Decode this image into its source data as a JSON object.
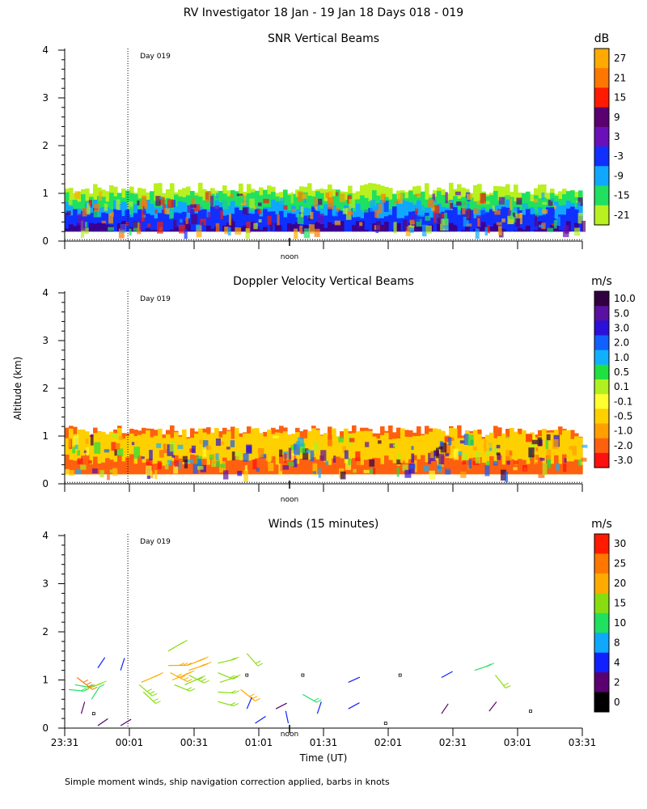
{
  "page_title": "RV Investigator  18 Jan - 19 Jan 18 Days 018 - 019",
  "y_axis_label": "Altitude (km)",
  "x_axis_label": "Time (UT)",
  "footer_note": "Simple moment winds, ship navigation correction applied, barbs in knots",
  "day_marker_label": "Day 019",
  "noon_label": "noon",
  "chart_data": [
    {
      "type": "heatmap",
      "title": "SNR Vertical Beams",
      "ylim": [
        0,
        4
      ],
      "yticks": [
        "0",
        "1",
        "2",
        "3",
        "4"
      ],
      "colorbar": {
        "unit": "dB",
        "labels": [
          "27",
          "21",
          "15",
          "9",
          "3",
          "-3",
          "-9",
          "-15",
          "-21"
        ],
        "colors": [
          "#ffaa00",
          "#ff7700",
          "#ff1a00",
          "#5a0070",
          "#6a10b8",
          "#1030ff",
          "#10a8ff",
          "#20e060",
          "#b8f020"
        ]
      },
      "profile": {
        "layers": [
          {
            "color": "#b8f020",
            "base": 0.2,
            "top": 1.1
          },
          {
            "color": "#20e060",
            "base": 0.2,
            "top": 0.95
          },
          {
            "color": "#10a8ff",
            "base": 0.2,
            "top": 0.75
          },
          {
            "color": "#1030ff",
            "base": 0.2,
            "top": 0.6
          },
          {
            "color": "#3a0090",
            "base": 0.2,
            "top": 0.3
          }
        ]
      }
    },
    {
      "type": "heatmap",
      "title": "Doppler Velocity Vertical Beams",
      "ylim": [
        0,
        4
      ],
      "yticks": [
        "0",
        "1",
        "2",
        "3",
        "4"
      ],
      "colorbar": {
        "unit": "m/s",
        "labels": [
          "10.0",
          "5.0",
          "3.0",
          "2.0",
          "1.0",
          "0.5",
          "0.1",
          "-0.1",
          "-0.5",
          "-1.0",
          "-2.0",
          "-3.0"
        ],
        "colors": [
          "#300040",
          "#5a10a0",
          "#2a10d8",
          "#1060ff",
          "#10b0ff",
          "#20e040",
          "#b0f020",
          "#ffff30",
          "#ffd000",
          "#ffa000",
          "#ff6010",
          "#ff1010"
        ]
      },
      "profile": {
        "layers": [
          {
            "color": "#ff6010",
            "base": 0.2,
            "top": 1.1
          },
          {
            "color": "#ffd000",
            "base": 0.2,
            "top": 1.05
          },
          {
            "color": "#ff6010",
            "base": 0.2,
            "top": 0.5
          }
        ]
      }
    },
    {
      "type": "scatter",
      "title": "Winds (15 minutes)",
      "ylim": [
        0,
        4
      ],
      "yticks": [
        "0",
        "1",
        "2",
        "3",
        "4"
      ],
      "xticks": [
        "23:31",
        "00:01",
        "00:31",
        "01:01",
        "01:31",
        "02:01",
        "02:31",
        "03:01",
        "03:31"
      ],
      "colorbar": {
        "unit": "m/s",
        "labels": [
          "30",
          "25",
          "20",
          "15",
          "10",
          "8",
          "4",
          "2",
          "0"
        ],
        "colors": [
          "#ff1a00",
          "#ff7700",
          "#ffaa00",
          "#88dd10",
          "#20e060",
          "#10a8ff",
          "#1020ff",
          "#5a0070",
          "#000000"
        ]
      },
      "barbs": [
        {
          "x": 0.02,
          "y": 0.8,
          "speed": 12
        },
        {
          "x": 0.05,
          "y": 0.9,
          "speed": 14
        },
        {
          "x": 0.06,
          "y": 1.05,
          "speed": 25
        },
        {
          "x": 0.1,
          "y": 0.8,
          "speed": 18
        },
        {
          "x": 0.13,
          "y": 0.6,
          "speed": 10
        },
        {
          "x": 0.16,
          "y": 1.25,
          "speed": 4
        },
        {
          "x": 0.08,
          "y": 0.3,
          "speed": 3
        },
        {
          "x": 0.14,
          "y": 0.3,
          "speed": 0
        },
        {
          "x": 0.16,
          "y": 0.05,
          "speed": 3
        },
        {
          "x": 0.27,
          "y": 1.2,
          "speed": 5
        },
        {
          "x": 0.27,
          "y": 0.05,
          "speed": 3
        },
        {
          "x": 0.36,
          "y": 0.9,
          "speed": 18
        },
        {
          "x": 0.38,
          "y": 0.75,
          "speed": 17
        },
        {
          "x": 0.37,
          "y": 0.95,
          "speed": 22
        },
        {
          "x": 0.5,
          "y": 1.6,
          "speed": 16
        },
        {
          "x": 0.5,
          "y": 1.3,
          "speed": 22
        },
        {
          "x": 0.51,
          "y": 1.15,
          "speed": 24
        },
        {
          "x": 0.52,
          "y": 1.0,
          "speed": 22
        },
        {
          "x": 0.53,
          "y": 0.9,
          "speed": 17
        },
        {
          "x": 0.59,
          "y": 1.3,
          "speed": 20
        },
        {
          "x": 0.6,
          "y": 1.1,
          "speed": 18
        },
        {
          "x": 0.6,
          "y": 1.2,
          "speed": 22
        },
        {
          "x": 0.58,
          "y": 0.9,
          "speed": 17
        },
        {
          "x": 0.74,
          "y": 1.35,
          "speed": 16
        },
        {
          "x": 0.74,
          "y": 1.15,
          "speed": 16
        },
        {
          "x": 0.75,
          "y": 0.95,
          "speed": 16
        },
        {
          "x": 0.74,
          "y": 0.75,
          "speed": 16
        },
        {
          "x": 0.74,
          "y": 0.55,
          "speed": 15
        },
        {
          "x": 0.88,
          "y": 1.55,
          "speed": 16
        },
        {
          "x": 0.85,
          "y": 0.8,
          "speed": 22
        },
        {
          "x": 0.88,
          "y": 1.1,
          "speed": 0
        },
        {
          "x": 0.88,
          "y": 0.4,
          "speed": 4
        },
        {
          "x": 0.92,
          "y": 0.1,
          "speed": 4
        },
        {
          "x": 1.02,
          "y": 0.4,
          "speed": 3
        },
        {
          "x": 1.08,
          "y": 0.1,
          "speed": 4
        },
        {
          "x": 1.15,
          "y": 0.7,
          "speed": 14
        },
        {
          "x": 1.15,
          "y": 1.1,
          "speed": 0
        },
        {
          "x": 1.22,
          "y": 0.3,
          "speed": 4
        },
        {
          "x": 1.37,
          "y": 0.95,
          "speed": 4
        },
        {
          "x": 1.37,
          "y": 0.4,
          "speed": 4
        },
        {
          "x": 1.55,
          "y": 0.1,
          "speed": 0
        },
        {
          "x": 1.62,
          "y": 1.1,
          "speed": 0
        },
        {
          "x": 1.82,
          "y": 1.05,
          "speed": 4
        },
        {
          "x": 1.82,
          "y": 0.3,
          "speed": 2
        },
        {
          "x": 1.98,
          "y": 1.2,
          "speed": 12
        },
        {
          "x": 2.08,
          "y": 1.1,
          "speed": 16
        },
        {
          "x": 2.05,
          "y": 0.35,
          "speed": 2
        },
        {
          "x": 2.25,
          "y": 0.35,
          "speed": 0
        }
      ],
      "barb_heights": [
        0.8,
        0.9,
        1.05,
        1.2,
        1.3
      ]
    }
  ]
}
